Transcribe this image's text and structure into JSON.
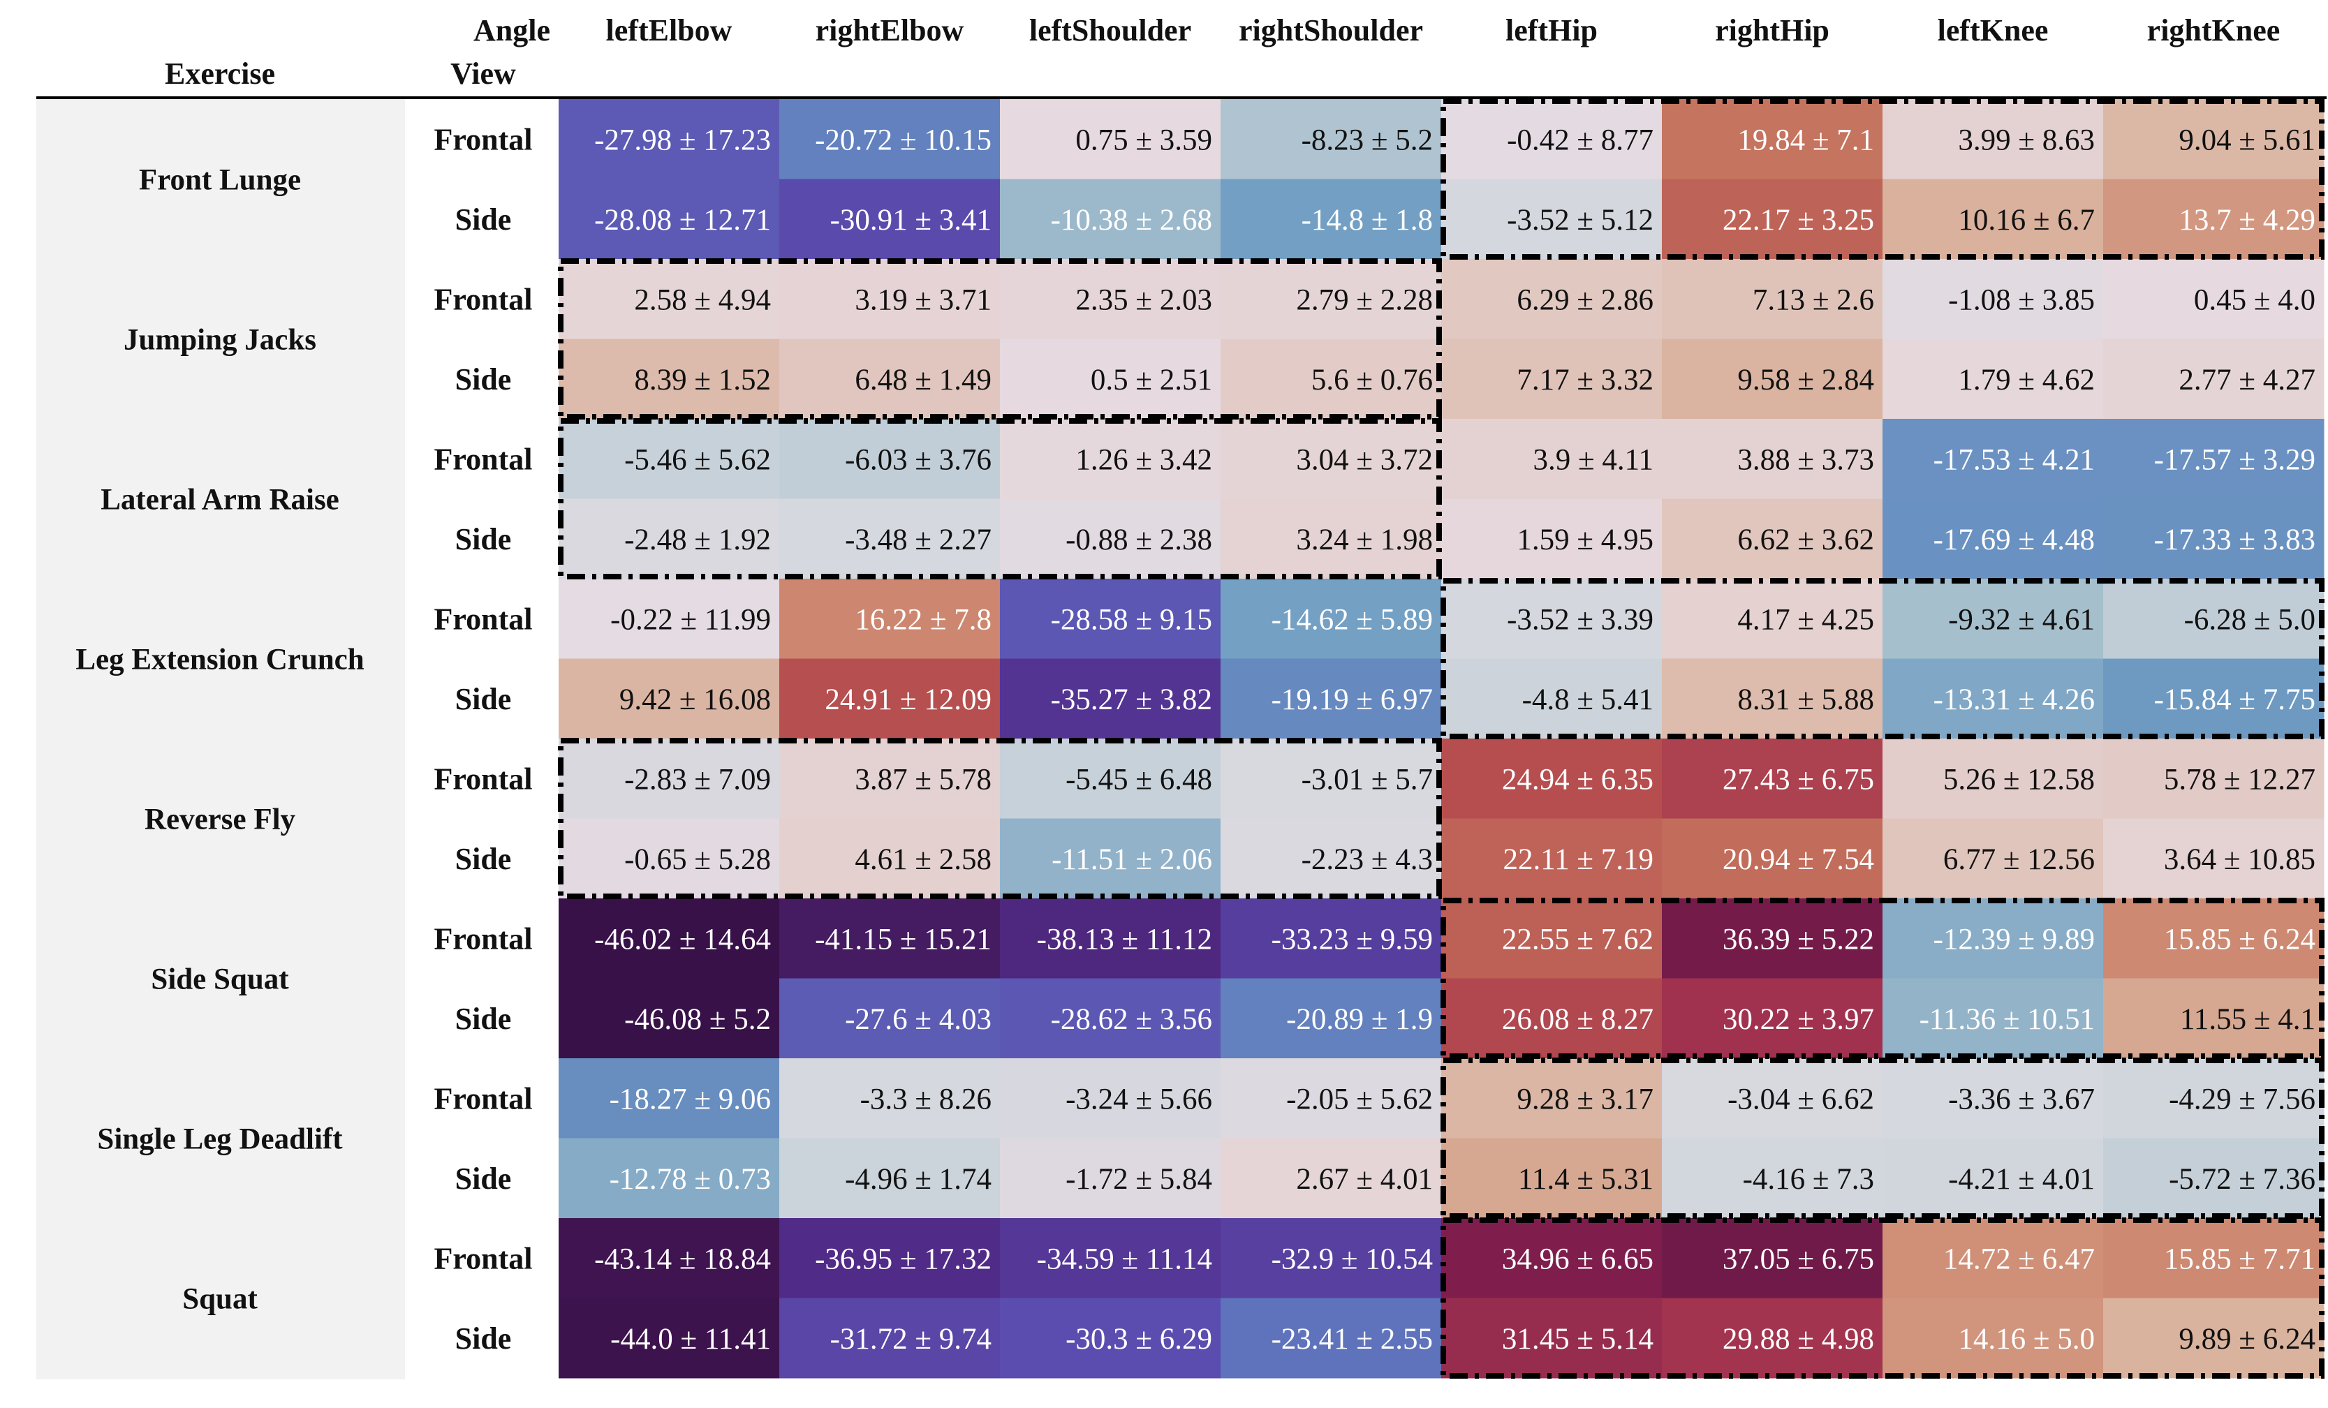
{
  "header": {
    "exercise": "Exercise",
    "angle": "Angle",
    "view": "View"
  },
  "chart_data": {
    "type": "table",
    "title": "",
    "columns": [
      "leftElbow",
      "rightElbow",
      "leftShoulder",
      "rightShoulder",
      "leftHip",
      "rightHip",
      "leftKnee",
      "rightKnee"
    ],
    "views": [
      "Frontal",
      "Side"
    ],
    "exercises": [
      {
        "name": "Front Lunge",
        "highlight_group": "lower",
        "rows": [
          {
            "view": "Frontal",
            "cells": [
              "-27.98 ± 17.23",
              "-20.72 ± 10.15",
              "0.75 ± 3.59",
              "-8.23 ± 5.2",
              "-0.42 ± 8.77",
              "19.84 ± 7.1",
              "3.99 ± 8.63",
              "9.04 ± 5.61"
            ],
            "means": [
              -27.98,
              -20.72,
              0.75,
              -8.23,
              -0.42,
              19.84,
              3.99,
              9.04
            ]
          },
          {
            "view": "Side",
            "cells": [
              "-28.08 ± 12.71",
              "-30.91 ± 3.41",
              "-10.38 ± 2.68",
              "-14.8 ± 1.8",
              "-3.52 ± 5.12",
              "22.17 ± 3.25",
              "10.16 ± 6.7",
              "13.7 ± 4.29"
            ],
            "means": [
              -28.08,
              -30.91,
              -10.38,
              -14.8,
              -3.52,
              22.17,
              10.16,
              13.7
            ]
          }
        ]
      },
      {
        "name": "Jumping Jacks",
        "highlight_group": "upper",
        "rows": [
          {
            "view": "Frontal",
            "cells": [
              "2.58 ± 4.94",
              "3.19 ± 3.71",
              "2.35 ± 2.03",
              "2.79 ± 2.28",
              "6.29 ± 2.86",
              "7.13 ± 2.6",
              "-1.08 ± 3.85",
              "0.45 ± 4.0"
            ],
            "means": [
              2.58,
              3.19,
              2.35,
              2.79,
              6.29,
              7.13,
              -1.08,
              0.45
            ]
          },
          {
            "view": "Side",
            "cells": [
              "8.39 ± 1.52",
              "6.48 ± 1.49",
              "0.5 ± 2.51",
              "5.6 ± 0.76",
              "7.17 ± 3.32",
              "9.58 ± 2.84",
              "1.79 ± 4.62",
              "2.77 ± 4.27"
            ],
            "means": [
              8.39,
              6.48,
              0.5,
              5.6,
              7.17,
              9.58,
              1.79,
              2.77
            ]
          }
        ]
      },
      {
        "name": "Lateral Arm Raise",
        "highlight_group": "upper",
        "rows": [
          {
            "view": "Frontal",
            "cells": [
              "-5.46 ± 5.62",
              "-6.03 ± 3.76",
              "1.26 ± 3.42",
              "3.04 ± 3.72",
              "3.9 ± 4.11",
              "3.88 ± 3.73",
              "-17.53 ± 4.21",
              "-17.57 ± 3.29"
            ],
            "means": [
              -5.46,
              -6.03,
              1.26,
              3.04,
              3.9,
              3.88,
              -17.53,
              -17.57
            ]
          },
          {
            "view": "Side",
            "cells": [
              "-2.48 ± 1.92",
              "-3.48 ± 2.27",
              "-0.88 ± 2.38",
              "3.24 ± 1.98",
              "1.59 ± 4.95",
              "6.62 ± 3.62",
              "-17.69 ± 4.48",
              "-17.33 ± 3.83"
            ],
            "means": [
              -2.48,
              -3.48,
              -0.88,
              3.24,
              1.59,
              6.62,
              -17.69,
              -17.33
            ]
          }
        ]
      },
      {
        "name": "Leg Extension Crunch",
        "highlight_group": "lower",
        "rows": [
          {
            "view": "Frontal",
            "cells": [
              "-0.22 ± 11.99",
              "16.22 ± 7.8",
              "-28.58 ± 9.15",
              "-14.62 ± 5.89",
              "-3.52 ± 3.39",
              "4.17 ± 4.25",
              "-9.32 ± 4.61",
              "-6.28 ± 5.0"
            ],
            "means": [
              -0.22,
              16.22,
              -28.58,
              -14.62,
              -3.52,
              4.17,
              -9.32,
              -6.28
            ]
          },
          {
            "view": "Side",
            "cells": [
              "9.42 ± 16.08",
              "24.91 ± 12.09",
              "-35.27 ± 3.82",
              "-19.19 ± 6.97",
              "-4.8 ± 5.41",
              "8.31 ± 5.88",
              "-13.31 ± 4.26",
              "-15.84 ± 7.75"
            ],
            "means": [
              9.42,
              24.91,
              -35.27,
              -19.19,
              -4.8,
              8.31,
              -13.31,
              -15.84
            ]
          }
        ]
      },
      {
        "name": "Reverse Fly",
        "highlight_group": "upper",
        "rows": [
          {
            "view": "Frontal",
            "cells": [
              "-2.83 ± 7.09",
              "3.87 ± 5.78",
              "-5.45 ± 6.48",
              "-3.01 ± 5.7",
              "24.94 ± 6.35",
              "27.43 ± 6.75",
              "5.26 ± 12.58",
              "5.78 ± 12.27"
            ],
            "means": [
              -2.83,
              3.87,
              -5.45,
              -3.01,
              24.94,
              27.43,
              5.26,
              5.78
            ]
          },
          {
            "view": "Side",
            "cells": [
              "-0.65 ± 5.28",
              "4.61 ± 2.58",
              "-11.51 ± 2.06",
              "-2.23 ± 4.3",
              "22.11 ± 7.19",
              "20.94 ± 7.54",
              "6.77 ± 12.56",
              "3.64 ± 10.85"
            ],
            "means": [
              -0.65,
              4.61,
              -11.51,
              -2.23,
              22.11,
              20.94,
              6.77,
              3.64
            ]
          }
        ]
      },
      {
        "name": "Side Squat",
        "highlight_group": "lower",
        "rows": [
          {
            "view": "Frontal",
            "cells": [
              "-46.02 ± 14.64",
              "-41.15 ± 15.21",
              "-38.13 ± 11.12",
              "-33.23 ± 9.59",
              "22.55 ± 7.62",
              "36.39 ± 5.22",
              "-12.39 ± 9.89",
              "15.85 ± 6.24"
            ],
            "means": [
              -46.02,
              -41.15,
              -38.13,
              -33.23,
              22.55,
              36.39,
              -12.39,
              15.85
            ]
          },
          {
            "view": "Side",
            "cells": [
              "-46.08 ± 5.2",
              "-27.6 ± 4.03",
              "-28.62 ± 3.56",
              "-20.89 ± 1.9",
              "26.08 ± 8.27",
              "30.22 ± 3.97",
              "-11.36 ± 10.51",
              "11.55 ± 4.1"
            ],
            "means": [
              -46.08,
              -27.6,
              -28.62,
              -20.89,
              26.08,
              30.22,
              -11.36,
              11.55
            ]
          }
        ]
      },
      {
        "name": "Single Leg Deadlift",
        "highlight_group": "lower",
        "rows": [
          {
            "view": "Frontal",
            "cells": [
              "-18.27 ± 9.06",
              "-3.3 ± 8.26",
              "-3.24 ± 5.66",
              "-2.05 ± 5.62",
              "9.28 ± 3.17",
              "-3.04 ± 6.62",
              "-3.36 ± 3.67",
              "-4.29 ± 7.56"
            ],
            "means": [
              -18.27,
              -3.3,
              -3.24,
              -2.05,
              9.28,
              -3.04,
              -3.36,
              -4.29
            ]
          },
          {
            "view": "Side",
            "cells": [
              "-12.78 ± 0.73",
              "-4.96 ± 1.74",
              "-1.72 ± 5.84",
              "2.67 ± 4.01",
              "11.4 ± 5.31",
              "-4.16 ± 7.3",
              "-4.21 ± 4.01",
              "-5.72 ± 7.36"
            ],
            "means": [
              -12.78,
              -4.96,
              -1.72,
              2.67,
              11.4,
              -4.16,
              -4.21,
              -5.72
            ]
          }
        ]
      },
      {
        "name": "Squat",
        "highlight_group": "lower",
        "rows": [
          {
            "view": "Frontal",
            "cells": [
              "-43.14 ± 18.84",
              "-36.95 ± 17.32",
              "-34.59 ± 11.14",
              "-32.9 ± 10.54",
              "34.96 ± 6.65",
              "37.05 ± 6.75",
              "14.72 ± 6.47",
              "15.85 ± 7.71"
            ],
            "means": [
              -43.14,
              -36.95,
              -34.59,
              -32.9,
              34.96,
              37.05,
              14.72,
              15.85
            ]
          },
          {
            "view": "Side",
            "cells": [
              "-44.0 ± 11.41",
              "-31.72 ± 9.74",
              "-30.3 ± 6.29",
              "-23.41 ± 2.55",
              "31.45 ± 5.14",
              "29.88 ± 4.98",
              "14.16 ± 5.0",
              "9.89 ± 6.24"
            ],
            "means": [
              -44.0,
              -31.72,
              -30.3,
              -23.41,
              31.45,
              29.88,
              14.16,
              9.89
            ]
          }
        ]
      }
    ],
    "color_scale": {
      "name": "twilight-like diverging",
      "domain": [
        -50,
        40
      ],
      "stops": [
        [
          -50,
          "#2e0d3e"
        ],
        [
          -43,
          "#3f1451"
        ],
        [
          -37,
          "#512b88"
        ],
        [
          -30,
          "#5b4fb1"
        ],
        [
          -22,
          "#5f7bbd"
        ],
        [
          -15,
          "#709ec3"
        ],
        [
          -9,
          "#a9c1cd"
        ],
        [
          -4,
          "#d3d7de"
        ],
        [
          0,
          "#e6dbe2"
        ],
        [
          5,
          "#e4cfcd"
        ],
        [
          10,
          "#d9b29d"
        ],
        [
          15,
          "#cf8e76"
        ],
        [
          20,
          "#c5735e"
        ],
        [
          25,
          "#b64e4f"
        ],
        [
          30,
          "#a1334f"
        ],
        [
          35,
          "#7f1e4c"
        ],
        [
          40,
          "#5a1444"
        ]
      ],
      "text_dark_color": "#111111",
      "text_light_color": "#ffffff",
      "light_text_threshold_low": -10,
      "light_text_threshold_high": 12
    },
    "highlight_style": "dash-dot black box around upper-body or lower-body joint group per exercise"
  }
}
